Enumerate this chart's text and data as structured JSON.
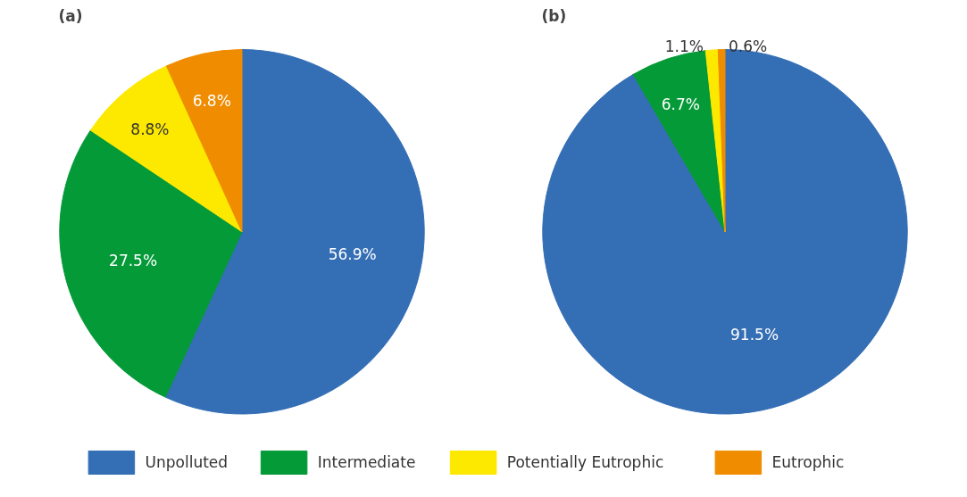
{
  "chart_data": [
    {
      "type": "pie",
      "title": "(a)",
      "categories": [
        "Unpolluted",
        "Intermediate",
        "Potentially Eutrophic",
        "Eutrophic"
      ],
      "values": [
        56.9,
        27.5,
        8.8,
        6.8
      ],
      "colors": [
        "#346eb5",
        "#049a37",
        "#fde800",
        "#f08c00"
      ],
      "value_labels": [
        "56.9%",
        "27.5%",
        "8.8%",
        "6.8%"
      ],
      "legend": "bottom"
    },
    {
      "type": "pie",
      "title": "(b)",
      "categories": [
        null,
        null,
        null,
        null
      ],
      "values": [
        91.5,
        6.7,
        1.1,
        0.6
      ],
      "colors": [
        "#346eb5",
        "#049a37",
        "#fde800",
        "#f08c00"
      ],
      "value_labels": [
        "91.5%",
        "6.7%",
        "1.1%",
        "0.6%"
      ]
    }
  ]
}
